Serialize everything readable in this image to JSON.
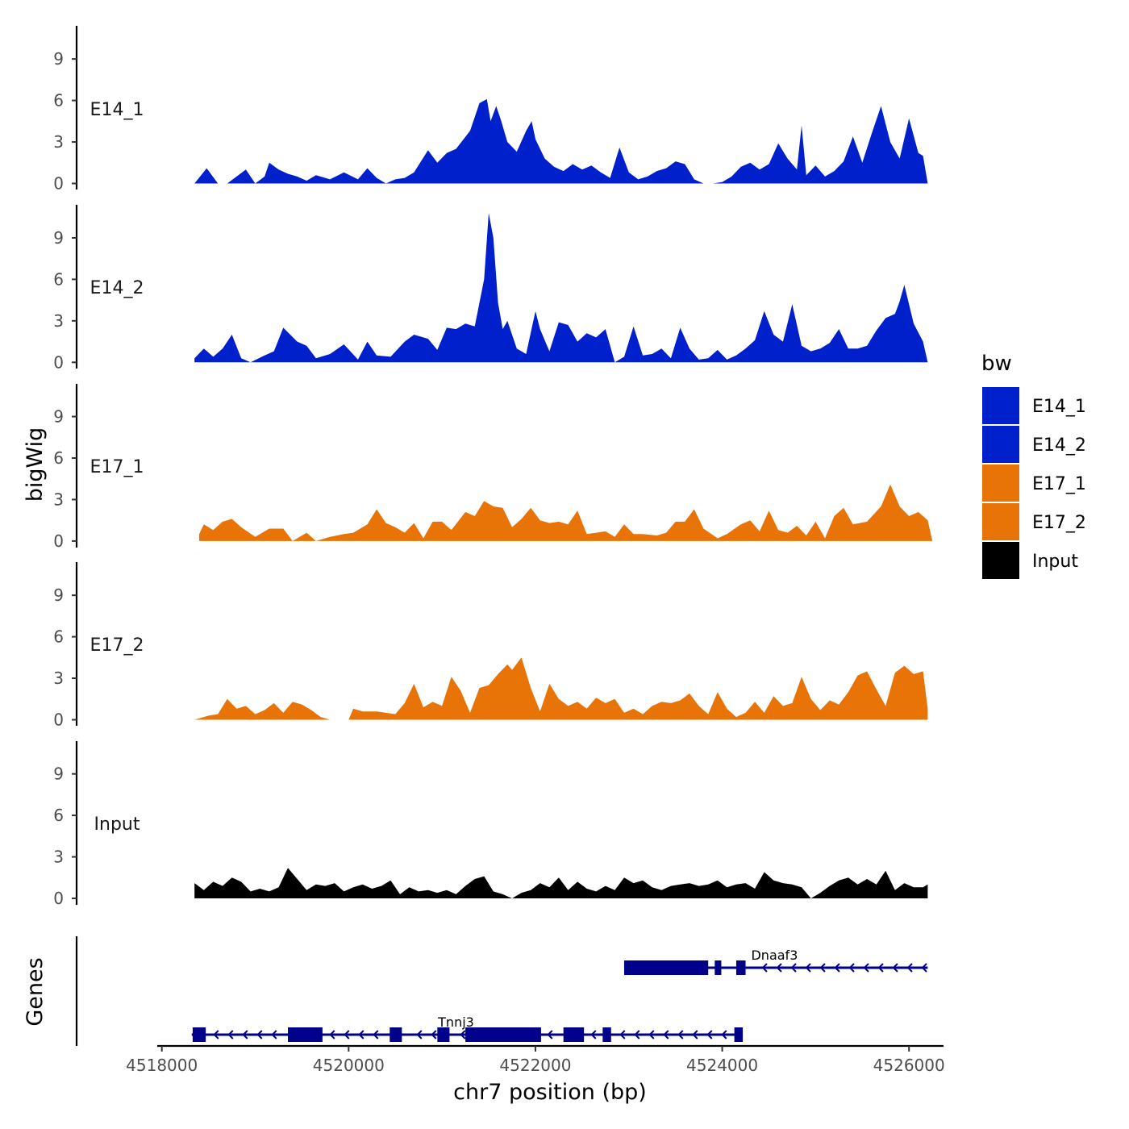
{
  "chart_data": {
    "type": "area",
    "chromosome": "chr7",
    "xlabel": "chr7 position (bp)",
    "ylabel": "bigWig",
    "genes_label": "Genes",
    "xlim": [
      4517950,
      4526600
    ],
    "ylim": [
      0,
      11.5
    ],
    "x_ticks": [
      4518000,
      4520000,
      4522000,
      4524000,
      4526000
    ],
    "y_ticks": [
      0,
      3,
      6,
      9
    ],
    "legend": {
      "title": "bw",
      "position": "right",
      "entries": [
        {
          "name": "E14_1",
          "color": "#0020CC"
        },
        {
          "name": "E14_2",
          "color": "#0020CC"
        },
        {
          "name": "E17_1",
          "color": "#E87306"
        },
        {
          "name": "E17_2",
          "color": "#E87306"
        },
        {
          "name": "Input",
          "color": "#000000"
        }
      ]
    },
    "tracks": [
      {
        "name": "E14_1",
        "color": "#0020CC",
        "x": [
          4518350,
          4518480,
          4518600,
          4518700,
          4518780,
          4518900,
          4519000,
          4519100,
          4519150,
          4519250,
          4519350,
          4519450,
          4519550,
          4519650,
          4519800,
          4519950,
          4520100,
          4520200,
          4520300,
          4520400,
          4520500,
          4520600,
          4520700,
          4520850,
          4520950,
          4521050,
          4521150,
          4521300,
          4521400,
          4521480,
          4521520,
          4521580,
          4521630,
          4521700,
          4521800,
          4521900,
          4521960,
          4522000,
          4522100,
          4522200,
          4522300,
          4522400,
          4522500,
          4522600,
          4522700,
          4522800,
          4522900,
          4523000,
          4523100,
          4523200,
          4523300,
          4523400,
          4523500,
          4523600,
          4523700,
          4523800,
          4523900,
          4524000,
          4524100,
          4524200,
          4524300,
          4524400,
          4524500,
          4524600,
          4524700,
          4524800,
          4524850,
          4524900,
          4525000,
          4525100,
          4525200,
          4525300,
          4525400,
          4525500,
          4525600,
          4525700,
          4525800,
          4525900,
          4526000,
          4526100,
          4526150,
          4526200
        ],
        "values": [
          0,
          1.1,
          0,
          0,
          0.4,
          1.0,
          0,
          0.5,
          1.5,
          1.0,
          0.7,
          0.5,
          0.2,
          0.6,
          0.3,
          0.8,
          0.3,
          1.1,
          0.4,
          0,
          0.3,
          0.4,
          0.8,
          2.4,
          1.5,
          2.2,
          2.5,
          3.8,
          5.8,
          6.1,
          4.5,
          5.6,
          4.6,
          3.0,
          2.3,
          3.8,
          4.5,
          3.2,
          1.8,
          1.2,
          0.9,
          1.4,
          1.0,
          1.3,
          0.8,
          0.4,
          2.6,
          0.8,
          0.3,
          0.5,
          0.9,
          1.1,
          1.6,
          1.4,
          0.3,
          0,
          0,
          0.1,
          0.5,
          1.2,
          1.5,
          1.0,
          1.4,
          2.9,
          1.8,
          1.0,
          4.2,
          0.6,
          1.3,
          0.5,
          0.9,
          1.6,
          3.4,
          1.5,
          3.6,
          5.6,
          3.0,
          1.8,
          4.7,
          2.2,
          2.0,
          0
        ]
      },
      {
        "name": "E14_2",
        "color": "#0020CC",
        "x": [
          4518350,
          4518450,
          4518550,
          4518650,
          4518750,
          4518850,
          4518950,
          4519100,
          4519200,
          4519300,
          4519450,
          4519550,
          4519650,
          4519800,
          4519950,
          4520100,
          4520200,
          4520300,
          4520450,
          4520600,
          4520700,
          4520850,
          4520950,
          4521050,
          4521150,
          4521250,
          4521350,
          4521450,
          4521500,
          4521550,
          4521600,
          4521650,
          4521700,
          4521800,
          4521900,
          4522000,
          4522050,
          4522150,
          4522250,
          4522350,
          4522450,
          4522550,
          4522650,
          4522750,
          4522850,
          4522950,
          4523050,
          4523150,
          4523250,
          4523350,
          4523450,
          4523550,
          4523650,
          4523750,
          4523850,
          4523950,
          4524050,
          4524150,
          4524250,
          4524350,
          4524450,
          4524550,
          4524650,
          4524750,
          4524850,
          4524950,
          4525050,
          4525150,
          4525250,
          4525350,
          4525450,
          4525550,
          4525650,
          4525750,
          4525850,
          4525900,
          4525950,
          4526050,
          4526150,
          4526200
        ],
        "values": [
          0.3,
          1.0,
          0.4,
          1.0,
          2.0,
          0.3,
          0,
          0.5,
          0.8,
          2.5,
          1.5,
          1.2,
          0.3,
          0.6,
          1.3,
          0.2,
          1.5,
          0.5,
          0.4,
          1.5,
          2.0,
          1.7,
          0.9,
          2.5,
          2.4,
          2.8,
          2.6,
          6.0,
          10.8,
          9.0,
          4.3,
          2.4,
          3.0,
          1.0,
          0.6,
          3.7,
          2.4,
          0.8,
          2.9,
          2.7,
          1.5,
          2.1,
          1.8,
          2.4,
          0,
          0.4,
          2.6,
          0.5,
          0.6,
          1.0,
          0.3,
          2.5,
          1.0,
          0.2,
          0.3,
          0.9,
          0.2,
          0.5,
          1.0,
          1.6,
          3.7,
          2.0,
          1.5,
          4.2,
          1.2,
          0.8,
          1.0,
          1.4,
          2.4,
          1.0,
          1.0,
          1.2,
          2.3,
          3.2,
          3.5,
          4.4,
          5.6,
          2.8,
          1.5,
          0
        ]
      },
      {
        "name": "E17_1",
        "color": "#E87306",
        "x": [
          4518400,
          4518450,
          4518550,
          4518650,
          4518750,
          4518850,
          4519000,
          4519150,
          4519300,
          4519400,
          4519550,
          4519650,
          4519800,
          4519950,
          4520050,
          4520200,
          4520300,
          4520400,
          4520500,
          4520600,
          4520700,
          4520800,
          4520900,
          4521000,
          4521100,
          4521250,
          4521350,
          4521450,
          4521550,
          4521650,
          4521750,
          4521850,
          4521950,
          4522050,
          4522150,
          4522250,
          4522350,
          4522450,
          4522550,
          4522650,
          4522750,
          4522850,
          4522950,
          4523050,
          4523150,
          4523300,
          4523400,
          4523500,
          4523600,
          4523700,
          4523800,
          4523950,
          4524050,
          4524200,
          4524300,
          4524400,
          4524500,
          4524600,
          4524700,
          4524800,
          4524900,
          4525000,
          4525100,
          4525200,
          4525300,
          4525400,
          4525550,
          4525700,
          4525800,
          4525900,
          4526000,
          4526100,
          4526200,
          4526250
        ],
        "values": [
          0.5,
          1.2,
          0.8,
          1.4,
          1.6,
          1.0,
          0.3,
          0.9,
          0.9,
          0,
          0.6,
          0,
          0.3,
          0.5,
          0.6,
          1.2,
          2.3,
          1.3,
          1.0,
          0.6,
          1.3,
          0.2,
          1.4,
          1.4,
          0.8,
          2.1,
          1.8,
          2.9,
          2.5,
          2.4,
          1.0,
          1.6,
          2.4,
          1.5,
          1.3,
          1.4,
          1.2,
          2.2,
          0.5,
          0.6,
          0.7,
          0.3,
          1.2,
          0.5,
          0.5,
          0.4,
          0.6,
          1.4,
          1.4,
          2.3,
          0.9,
          0.2,
          0.5,
          1.2,
          1.5,
          0.7,
          2.2,
          0.8,
          0.6,
          1.1,
          0.4,
          1.4,
          0.2,
          1.8,
          2.4,
          1.2,
          1.4,
          2.5,
          4.1,
          2.5,
          1.8,
          2.1,
          1.5,
          0
        ]
      },
      {
        "name": "E17_2",
        "color": "#E87306",
        "x": [
          4518350,
          4518500,
          4518600,
          4518700,
          4518800,
          4518900,
          4519000,
          4519100,
          4519200,
          4519300,
          4519400,
          4519500,
          4519600,
          4519700,
          4519800,
          4519900,
          4520000,
          4520050,
          4520150,
          4520300,
          4520400,
          4520500,
          4520600,
          4520700,
          4520800,
          4520900,
          4521000,
          4521100,
          4521200,
          4521300,
          4521400,
          4521500,
          4521600,
          4521700,
          4521750,
          4521850,
          4521950,
          4522050,
          4522150,
          4522250,
          4522350,
          4522450,
          4522550,
          4522650,
          4522750,
          4522850,
          4522950,
          4523050,
          4523150,
          4523250,
          4523350,
          4523450,
          4523550,
          4523650,
          4523750,
          4523850,
          4523950,
          4524050,
          4524150,
          4524250,
          4524350,
          4524450,
          4524550,
          4524650,
          4524750,
          4524850,
          4524950,
          4525050,
          4525150,
          4525250,
          4525350,
          4525450,
          4525550,
          4525650,
          4525750,
          4525850,
          4525950,
          4526050,
          4526150,
          4526200
        ],
        "values": [
          0,
          0.3,
          0.4,
          1.5,
          0.8,
          1.0,
          0.4,
          0.7,
          1.2,
          0.5,
          1.3,
          1.1,
          0.7,
          0.2,
          0,
          0,
          0,
          0.8,
          0.6,
          0.6,
          0.5,
          0.4,
          1.2,
          2.6,
          0.9,
          1.3,
          1.0,
          3.1,
          2.1,
          0.5,
          2.3,
          2.5,
          3.3,
          4.0,
          3.6,
          4.5,
          2.3,
          0.6,
          2.6,
          1.5,
          1.0,
          1.3,
          0.8,
          1.6,
          1.2,
          1.5,
          0.5,
          0.8,
          0.4,
          1.0,
          1.3,
          1.2,
          1.4,
          1.9,
          1.0,
          0.4,
          2.0,
          0.8,
          0.2,
          0.5,
          1.3,
          0.5,
          1.7,
          1.0,
          1.2,
          3.1,
          1.5,
          0.7,
          1.4,
          1.1,
          2.0,
          3.2,
          3.5,
          2.2,
          1.0,
          3.4,
          3.9,
          3.3,
          3.5,
          0.8
        ]
      },
      {
        "name": "Input",
        "color": "#000000",
        "x": [
          4518350,
          4518450,
          4518550,
          4518650,
          4518750,
          4518850,
          4518950,
          4519050,
          4519150,
          4519250,
          4519350,
          4519450,
          4519550,
          4519650,
          4519750,
          4519850,
          4519950,
          4520050,
          4520150,
          4520250,
          4520350,
          4520450,
          4520550,
          4520650,
          4520750,
          4520850,
          4520950,
          4521050,
          4521150,
          4521250,
          4521350,
          4521450,
          4521550,
          4521650,
          4521750,
          4521850,
          4521950,
          4522050,
          4522150,
          4522250,
          4522350,
          4522450,
          4522550,
          4522650,
          4522750,
          4522850,
          4522950,
          4523050,
          4523150,
          4523250,
          4523350,
          4523450,
          4523550,
          4523650,
          4523750,
          4523850,
          4523950,
          4524050,
          4524150,
          4524250,
          4524350,
          4524450,
          4524550,
          4524650,
          4524750,
          4524850,
          4524950,
          4525050,
          4525150,
          4525250,
          4525350,
          4525450,
          4525550,
          4525650,
          4525750,
          4525850,
          4525950,
          4526050,
          4526150,
          4526200
        ],
        "values": [
          1.1,
          0.6,
          1.2,
          0.9,
          1.5,
          1.2,
          0.5,
          0.7,
          0.5,
          0.8,
          2.2,
          1.4,
          0.6,
          1.0,
          0.9,
          1.1,
          0.5,
          0.8,
          1.0,
          0.7,
          0.9,
          1.3,
          0.3,
          0.8,
          0.5,
          0.6,
          0.4,
          0.6,
          0.3,
          0.9,
          1.4,
          1.6,
          0.5,
          0.3,
          0,
          0.4,
          0.6,
          1.1,
          0.8,
          1.5,
          0.6,
          1.2,
          0.7,
          0.5,
          0.9,
          0.6,
          1.5,
          1.1,
          1.3,
          0.8,
          0.6,
          0.9,
          1.0,
          1.1,
          0.9,
          1.0,
          1.3,
          0.8,
          1.0,
          1.1,
          0.7,
          1.9,
          1.3,
          1.1,
          1.0,
          0.8,
          0,
          0.4,
          0.9,
          1.3,
          1.5,
          1.0,
          1.4,
          1.0,
          2.0,
          0.6,
          1.1,
          0.8,
          0.8,
          1.0
        ]
      }
    ],
    "genes": [
      {
        "name": "Dnaaf3",
        "strand": "-",
        "row": 1,
        "color": "#00008B",
        "start": 4522950,
        "end": 4526200,
        "label_pos": 4524560,
        "exons": [
          [
            4522950,
            4523850
          ],
          [
            4523920,
            4523990
          ],
          [
            4524150,
            4524250
          ]
        ]
      },
      {
        "name": "Tnnj3",
        "strand": "-",
        "row": 2,
        "color": "#00008B",
        "start": 4518320,
        "end": 4524220,
        "label_pos": 4521150,
        "exons": [
          [
            4518330,
            4518470
          ],
          [
            4519350,
            4519720
          ],
          [
            4520440,
            4520570
          ],
          [
            4520950,
            4521080
          ],
          [
            4521250,
            4522060
          ],
          [
            4522300,
            4522520
          ],
          [
            4522720,
            4522810
          ],
          [
            4524130,
            4524220
          ]
        ]
      }
    ]
  }
}
